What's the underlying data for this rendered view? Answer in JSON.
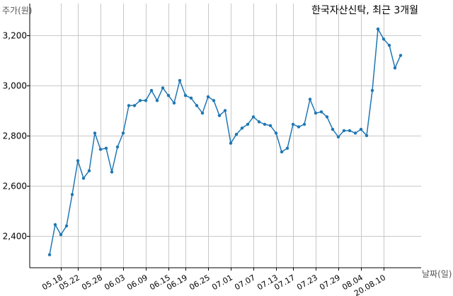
{
  "chart_data": {
    "type": "line",
    "title": "한국자산신탁, 최근 3개월",
    "ylabel": "주가(원)",
    "xlabel": "날짜(일)",
    "color": "#1f77b4",
    "ylim": [
      2280,
      3270
    ],
    "yticks": [
      2400,
      2600,
      2800,
      3000,
      3200
    ],
    "ytick_labels": [
      "2,400",
      "2,600",
      "2,800",
      "3,000",
      "3,200"
    ],
    "xtick_labels": [
      "05.18",
      "05.22",
      "05.28",
      "06.03",
      "06.09",
      "06.15",
      "06.19",
      "06.25",
      "07.01",
      "07.07",
      "07.13",
      "07.17",
      "07.23",
      "07.29",
      "08.04",
      "20.08.10"
    ],
    "xtick_index": [
      2,
      5,
      9,
      13,
      17,
      21,
      24,
      28,
      32,
      36,
      40,
      43,
      47,
      51,
      55,
      59
    ],
    "grid": true,
    "values": [
      2325,
      2445,
      2405,
      2440,
      2565,
      2700,
      2630,
      2660,
      2810,
      2745,
      2750,
      2655,
      2755,
      2810,
      2920,
      2920,
      2940,
      2940,
      2980,
      2940,
      2990,
      2960,
      2930,
      3020,
      2960,
      2950,
      2920,
      2890,
      2955,
      2940,
      2880,
      2900,
      2770,
      2805,
      2830,
      2845,
      2875,
      2855,
      2845,
      2840,
      2810,
      2735,
      2750,
      2845,
      2835,
      2845,
      2945,
      2890,
      2895,
      2875,
      2825,
      2795,
      2820,
      2820,
      2810,
      2825,
      2800,
      2980,
      3225,
      3185,
      3160,
      3070,
      3120
    ]
  }
}
